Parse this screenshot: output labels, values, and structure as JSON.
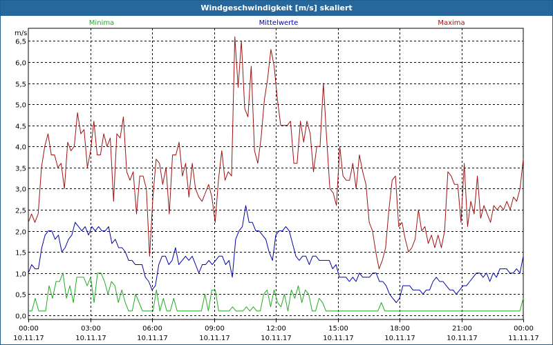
{
  "window": {
    "title": "Windgeschwindigkeit [m/s] skaliert"
  },
  "colors": {
    "minima": "#22aa22",
    "mittel": "#0000aa",
    "maxima": "#a01010",
    "grid": "#000000"
  },
  "chart_data": {
    "type": "line",
    "title": "Windgeschwindigkeit [m/s] skaliert",
    "ylabel": "m/s",
    "ylim": [
      -0.1,
      6.8
    ],
    "xlim": [
      0,
      24
    ],
    "yticks": [
      0.0,
      0.5,
      1.0,
      1.5,
      2.0,
      2.5,
      3.0,
      3.5,
      4.0,
      4.5,
      5.0,
      5.5,
      6.0,
      6.5
    ],
    "ytick_labels": [
      "0,0",
      "0,5",
      "1,0",
      "1,5",
      "2,0",
      "2,5",
      "3,0",
      "3,5",
      "4,0",
      "4,5",
      "5,0",
      "5,5",
      "6,0",
      "6,5"
    ],
    "xticks": [
      {
        "hour": 0,
        "time": "00:00",
        "date": "10.11.17"
      },
      {
        "hour": 3,
        "time": "03:00",
        "date": "10.11.17"
      },
      {
        "hour": 6,
        "time": "06:00",
        "date": "10.11.17"
      },
      {
        "hour": 9,
        "time": "09:00",
        "date": "10.11.17"
      },
      {
        "hour": 12,
        "time": "12:00",
        "date": "10.11.17"
      },
      {
        "hour": 15,
        "time": "15:00",
        "date": "10.11.17"
      },
      {
        "hour": 18,
        "time": "18:00",
        "date": "10.11.17"
      },
      {
        "hour": 21,
        "time": "21:00",
        "date": "10.11.17"
      },
      {
        "hour": 24,
        "time": "00:00",
        "date": "11.11.17"
      }
    ],
    "interval_hours": 0.1667,
    "series": [
      {
        "name": "Minima",
        "key": "minima",
        "values": [
          0.1,
          0.1,
          0.4,
          0.1,
          0.1,
          0.1,
          0.7,
          0.4,
          0.8,
          0.8,
          1.0,
          0.4,
          0.7,
          0.3,
          0.9,
          0.9,
          0.9,
          0.7,
          0.9,
          0.3,
          1.0,
          1.0,
          0.8,
          0.5,
          0.8,
          0.7,
          0.3,
          0.6,
          0.3,
          0.1,
          0.1,
          0.5,
          0.3,
          0.1,
          0.1,
          0.1,
          0.1,
          0.6,
          0.1,
          0.4,
          0.1,
          0.1,
          0.4,
          0.1,
          0.1,
          0.1,
          0.1,
          0.1,
          0.1,
          0.1,
          0.1,
          0.5,
          0.1,
          0.6,
          0.6,
          0.1,
          0.1,
          0.1,
          0.1,
          0.2,
          0.1,
          0.1,
          0.1,
          0.2,
          0.1,
          0.2,
          0.1,
          0.1,
          0.5,
          0.6,
          0.2,
          0.6,
          0.3,
          0.2,
          0.5,
          0.1,
          0.6,
          0.4,
          0.7,
          0.3,
          0.6,
          0.5,
          0.1,
          0.1,
          0.4,
          0.3,
          0.1,
          0.1,
          0.1,
          0.1,
          0.1,
          0.1,
          0.1,
          0.1,
          0.1,
          0.1,
          0.1,
          0.1,
          0.1,
          0.1,
          0.1,
          0.1,
          0.3,
          0.1,
          0.1,
          0.1,
          0.1,
          0.1,
          0.1,
          0.1,
          0.1,
          0.1,
          0.1,
          0.1,
          0.1,
          0.1,
          0.1,
          0.1,
          0.1,
          0.1,
          0.1,
          0.1,
          0.1,
          0.1,
          0.1,
          0.1,
          0.1,
          0.1,
          0.1,
          0.1,
          0.1,
          0.1,
          0.1,
          0.1,
          0.1,
          0.1,
          0.1,
          0.1,
          0.1,
          0.1,
          0.1,
          0.1,
          0.1,
          0.4
        ]
      },
      {
        "name": "Mittelwerte",
        "key": "mittel",
        "values": [
          1.0,
          1.2,
          1.1,
          1.1,
          1.6,
          1.9,
          2.0,
          2.0,
          1.8,
          1.9,
          1.5,
          1.6,
          1.8,
          1.9,
          2.2,
          2.1,
          2.0,
          2.1,
          1.9,
          2.1,
          2.0,
          2.1,
          2.0,
          2.0,
          2.1,
          1.7,
          1.8,
          1.6,
          1.6,
          1.5,
          1.3,
          1.3,
          1.2,
          1.2,
          1.2,
          0.9,
          0.8,
          0.6,
          0.7,
          1.2,
          1.4,
          1.4,
          1.2,
          1.3,
          1.6,
          1.2,
          1.3,
          1.4,
          1.3,
          1.4,
          1.2,
          1.0,
          1.2,
          1.2,
          1.3,
          1.2,
          1.3,
          1.4,
          1.4,
          1.2,
          1.3,
          0.9,
          1.8,
          2.0,
          2.1,
          2.6,
          2.2,
          2.2,
          2.0,
          2.0,
          1.9,
          1.8,
          1.5,
          1.3,
          1.9,
          2.0,
          2.0,
          2.1,
          2.0,
          1.7,
          1.4,
          1.3,
          1.4,
          1.4,
          1.2,
          1.4,
          1.4,
          1.3,
          1.3,
          1.3,
          1.3,
          1.1,
          1.2,
          0.9,
          0.9,
          0.9,
          0.8,
          0.9,
          0.8,
          1.0,
          0.9,
          0.9,
          0.9,
          1.0,
          1.0,
          0.8,
          0.8,
          0.7,
          0.5,
          0.4,
          0.3,
          0.4,
          0.7,
          0.7,
          0.7,
          0.6,
          0.6,
          0.6,
          0.5,
          0.6,
          0.6,
          0.8,
          0.9,
          0.8,
          0.8,
          0.7,
          0.6,
          0.6,
          0.5,
          0.6,
          0.7,
          0.7,
          0.8,
          0.9,
          1.0,
          1.0,
          0.9,
          1.0,
          0.8,
          1.0,
          0.9,
          1.1,
          1.1,
          1.1,
          1.0,
          1.0,
          1.1,
          1.0,
          1.4
        ]
      },
      {
        "name": "Maxima",
        "key": "maxima",
        "values": [
          2.2,
          2.4,
          2.2,
          2.4,
          3.5,
          4.0,
          4.3,
          3.8,
          3.8,
          3.5,
          3.6,
          3.0,
          4.1,
          3.9,
          4.0,
          4.8,
          4.3,
          4.4,
          3.5,
          3.9,
          4.6,
          3.8,
          3.8,
          4.3,
          4.0,
          4.2,
          2.7,
          4.3,
          4.2,
          4.7,
          3.4,
          3.2,
          3.4,
          2.4,
          3.3,
          3.3,
          3.0,
          1.4,
          2.8,
          3.7,
          3.6,
          3.1,
          3.5,
          2.4,
          3.8,
          3.8,
          4.1,
          3.3,
          3.6,
          2.8,
          3.6,
          3.0,
          2.8,
          2.7,
          2.9,
          3.1,
          2.8,
          2.2,
          3.2,
          3.9,
          3.2,
          3.4,
          3.3,
          6.6,
          5.4,
          6.5,
          4.9,
          4.7,
          5.9,
          3.9,
          3.6,
          4.2,
          5.1,
          5.6,
          6.3,
          5.9,
          5.1,
          4.5,
          4.5,
          4.5,
          4.6,
          3.6,
          3.6,
          4.6,
          4.1,
          4.6,
          4.3,
          3.4,
          4.0,
          4.0,
          5.5,
          4.2,
          3.0,
          2.9,
          2.6,
          4.0,
          3.3,
          3.2,
          3.2,
          3.6,
          3.0,
          3.8,
          3.4,
          3.1,
          2.2,
          2.0,
          1.5,
          1.1,
          1.3,
          1.6,
          2.5,
          3.2,
          3.3,
          2.1,
          2.2,
          1.8,
          1.5,
          1.6,
          1.8,
          2.5,
          2.0,
          2.1,
          1.7,
          1.9,
          1.6,
          1.9,
          1.6,
          2.0,
          3.4,
          3.3,
          3.1,
          3.1,
          2.2,
          3.6,
          2.1,
          2.7,
          2.4,
          3.3,
          2.3,
          2.6,
          2.4,
          2.2,
          2.6,
          2.5,
          2.6,
          2.5,
          2.7,
          2.5,
          2.8,
          2.7,
          3.0,
          3.7
        ]
      }
    ]
  }
}
